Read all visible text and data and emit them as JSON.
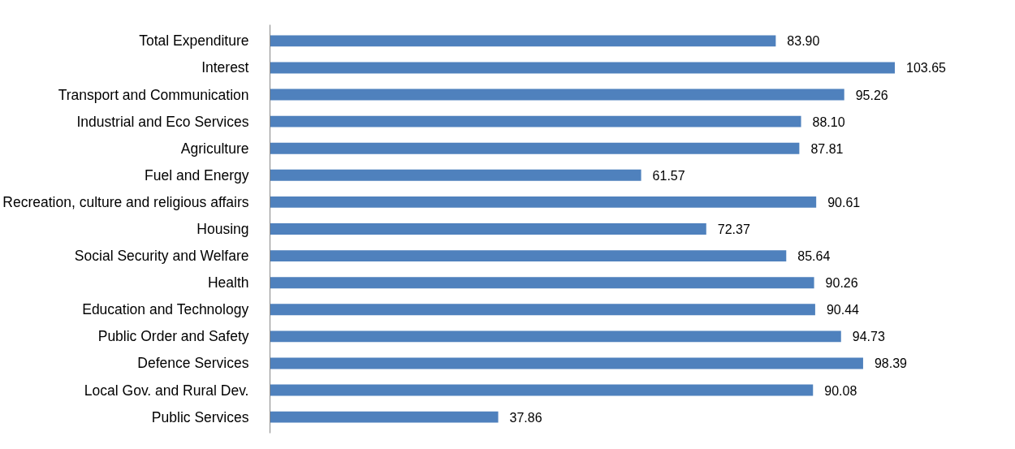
{
  "chart_data": {
    "type": "bar",
    "orientation": "horizontal",
    "data_labels": true,
    "grid": false,
    "categories": [
      "Total Expenditure",
      "Interest",
      "Transport and Communication",
      "Industrial and Eco Services",
      "Agriculture",
      "Fuel and Energy",
      "Recreation, culture and religious affairs",
      "Housing",
      "Social Security and Welfare",
      "Health",
      "Education and Technology",
      "Public Order and Safety",
      "Defence Services",
      "Local Gov. and Rural Dev.",
      "Public Services"
    ],
    "values": [
      83.9,
      103.65,
      95.26,
      88.1,
      87.81,
      61.57,
      90.61,
      72.37,
      85.64,
      90.26,
      90.44,
      94.73,
      98.39,
      90.08,
      37.86
    ],
    "value_labels": [
      "83.90",
      "103.65",
      "95.26",
      "88.10",
      "87.81",
      "61.57",
      "90.61",
      "72.37",
      "85.64",
      "90.26",
      "90.44",
      "94.73",
      "98.39",
      "90.08",
      "37.86"
    ],
    "color": "#4f81bd"
  }
}
